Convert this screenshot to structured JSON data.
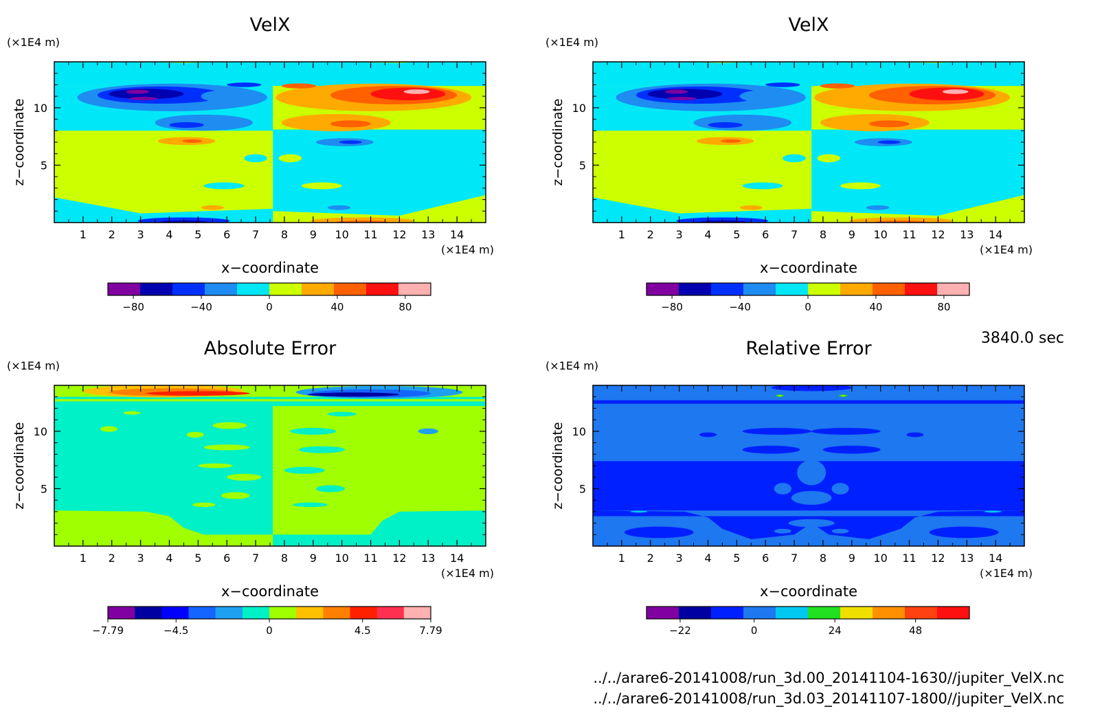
{
  "figure": {
    "time_label": "3840.0 sec",
    "files": [
      "../../arare6-20141008/run_3d.00_20141104-1630//jupiter_VelX.nc",
      "../../arare6-20141008/run_3d.03_20141107-1800//jupiter_VelX.nc"
    ]
  },
  "chart_data": [
    {
      "type": "heatmap",
      "title": "VelX",
      "xlabel": "x−coordinate",
      "ylabel": "z−coordinate",
      "x_unit": "(×1E4 m)",
      "y_unit": "(×1E4 m)",
      "xlim": [
        0,
        15
      ],
      "ylim": [
        0,
        14
      ],
      "x_ticks": [
        1,
        2,
        3,
        4,
        5,
        6,
        7,
        8,
        9,
        10,
        11,
        12,
        13,
        14
      ],
      "y_ticks": [
        5,
        10
      ],
      "colorbar": {
        "colors": [
          "#8000a0",
          "#0000b0",
          "#0030ff",
          "#1e8cf0",
          "#00e8f8",
          "#ccff00",
          "#ffaa00",
          "#ff6000",
          "#ff1010",
          "#ffb0b0"
        ],
        "tick_values": [
          -80,
          -40,
          0,
          40,
          80
        ],
        "tick_labels": [
          "−80",
          "−40",
          "0",
          "40",
          "80"
        ],
        "range": [
          -95,
          95
        ]
      }
    },
    {
      "type": "heatmap",
      "title": "VelX",
      "xlabel": "x−coordinate",
      "ylabel": "z−coordinate",
      "x_unit": "(×1E4 m)",
      "y_unit": "(×1E4 m)",
      "xlim": [
        0,
        15
      ],
      "ylim": [
        0,
        14
      ],
      "x_ticks": [
        1,
        2,
        3,
        4,
        5,
        6,
        7,
        8,
        9,
        10,
        11,
        12,
        13,
        14
      ],
      "y_ticks": [
        5,
        10
      ],
      "colorbar": {
        "colors": [
          "#8000a0",
          "#0000b0",
          "#0030ff",
          "#1e8cf0",
          "#00e8f8",
          "#ccff00",
          "#ffaa00",
          "#ff6000",
          "#ff1010",
          "#ffb0b0"
        ],
        "tick_values": [
          -80,
          -40,
          0,
          40,
          80
        ],
        "tick_labels": [
          "−80",
          "−40",
          "0",
          "40",
          "80"
        ],
        "range": [
          -95,
          95
        ]
      }
    },
    {
      "type": "heatmap",
      "title": "Absolute Error",
      "xlabel": "x−coordinate",
      "ylabel": "z−coordinate",
      "x_unit": "(×1E4 m)",
      "y_unit": "(×1E4 m)",
      "xlim": [
        0,
        15
      ],
      "ylim": [
        0,
        14
      ],
      "x_ticks": [
        1,
        2,
        3,
        4,
        5,
        6,
        7,
        8,
        9,
        10,
        11,
        12,
        13,
        14
      ],
      "y_ticks": [
        5,
        10
      ],
      "colorbar": {
        "colors": [
          "#8000a0",
          "#0000a0",
          "#0000ff",
          "#1464ff",
          "#1ea0f0",
          "#00f0c8",
          "#a0ff00",
          "#ffc000",
          "#ff8000",
          "#ff2000",
          "#ff3050",
          "#ffb0b0"
        ],
        "tick_values": [
          -7.79,
          -4.5,
          0,
          4.5,
          7.79
        ],
        "tick_labels": [
          "−7.79",
          "−4.5",
          "0",
          "4.5",
          "7.79"
        ],
        "range": [
          -7.79,
          7.79
        ]
      }
    },
    {
      "type": "heatmap",
      "title": "Relative Error",
      "xlabel": "x−coordinate",
      "ylabel": "z−coordinate",
      "x_unit": "(×1E4 m)",
      "y_unit": "(×1E4 m)",
      "xlim": [
        0,
        15
      ],
      "ylim": [
        0,
        14
      ],
      "x_ticks": [
        1,
        2,
        3,
        4,
        5,
        6,
        7,
        8,
        9,
        10,
        11,
        12,
        13,
        14
      ],
      "y_ticks": [
        5,
        10
      ],
      "colorbar": {
        "colors": [
          "#8000a0",
          "#0000a0",
          "#0020ff",
          "#1e78f0",
          "#00c8f0",
          "#20e020",
          "#f0e000",
          "#ff9000",
          "#ff4010",
          "#ff1010"
        ],
        "tick_values": [
          -22,
          0,
          24,
          48
        ],
        "tick_labels": [
          "−22",
          "0",
          "24",
          "48"
        ],
        "range": [
          -32,
          64
        ]
      }
    }
  ]
}
